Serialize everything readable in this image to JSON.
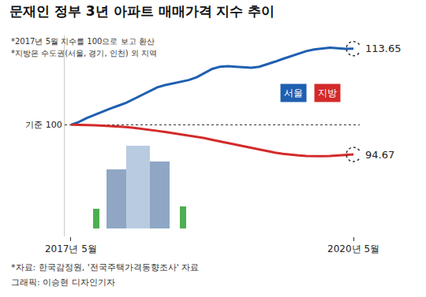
{
  "chart_data": {
    "type": "line",
    "title": "문재인 정부 3년 아파트 매매가격 지수 추이",
    "notes": [
      "*2017년 5월 지수를 100으로 보고 환산",
      "*지방은 수도권(서울, 경기, 인천) 외 지역"
    ],
    "source": "*자료: 한국감정원, '전국주택가격동향조사' 자료",
    "credit": "그래픽: 이승현 디자인기자",
    "categories": [
      "2017년 5월",
      null,
      null,
      null,
      null,
      null,
      null,
      null,
      null,
      null,
      null,
      null,
      null,
      null,
      null,
      null,
      null,
      null,
      null,
      null,
      null,
      null,
      null,
      null,
      null,
      null,
      null,
      null,
      null,
      null,
      null,
      null,
      null,
      null,
      null,
      null,
      "2020년 5월"
    ],
    "ylim": [
      80,
      116
    ],
    "yticks": [
      {
        "value": 100,
        "label": "기준 100"
      }
    ],
    "grid": true,
    "series": [
      {
        "name": "서울",
        "color": "#1f5fb0",
        "values": [
          100,
          100.5,
          101.2,
          101.8,
          102.4,
          102.9,
          103.4,
          103.9,
          104.6,
          105.3,
          106.0,
          106.7,
          107.1,
          107.4,
          107.7,
          108.0,
          108.5,
          109.3,
          110.0,
          110.4,
          110.5,
          110.4,
          110.3,
          110.2,
          110.4,
          110.8,
          111.3,
          111.8,
          112.3,
          112.8,
          113.2,
          113.5,
          113.7,
          113.8,
          113.7,
          113.6,
          113.65
        ],
        "value_labels": [
          null,
          null,
          null,
          null,
          null,
          null,
          null,
          null,
          null,
          null,
          null,
          null,
          null,
          null,
          null,
          null,
          null,
          null,
          null,
          null,
          null,
          null,
          null,
          null,
          null,
          null,
          null,
          null,
          null,
          null,
          null,
          null,
          null,
          null,
          null,
          null,
          "113.65"
        ]
      },
      {
        "name": "지방",
        "color": "#d42a2a",
        "values": [
          100,
          100.0,
          99.95,
          99.9,
          99.85,
          99.8,
          99.7,
          99.6,
          99.45,
          99.3,
          99.1,
          98.9,
          98.7,
          98.5,
          98.3,
          98.1,
          97.9,
          97.6,
          97.3,
          97.0,
          96.7,
          96.4,
          96.1,
          95.8,
          95.5,
          95.2,
          95.0,
          94.8,
          94.6,
          94.5,
          94.4,
          94.35,
          94.35,
          94.4,
          94.5,
          94.6,
          94.67
        ],
        "value_labels": [
          null,
          null,
          null,
          null,
          null,
          null,
          null,
          null,
          null,
          null,
          null,
          null,
          null,
          null,
          null,
          null,
          null,
          null,
          null,
          null,
          null,
          null,
          null,
          null,
          null,
          null,
          null,
          null,
          null,
          null,
          null,
          null,
          null,
          null,
          null,
          null,
          "94.67"
        ]
      }
    ]
  }
}
